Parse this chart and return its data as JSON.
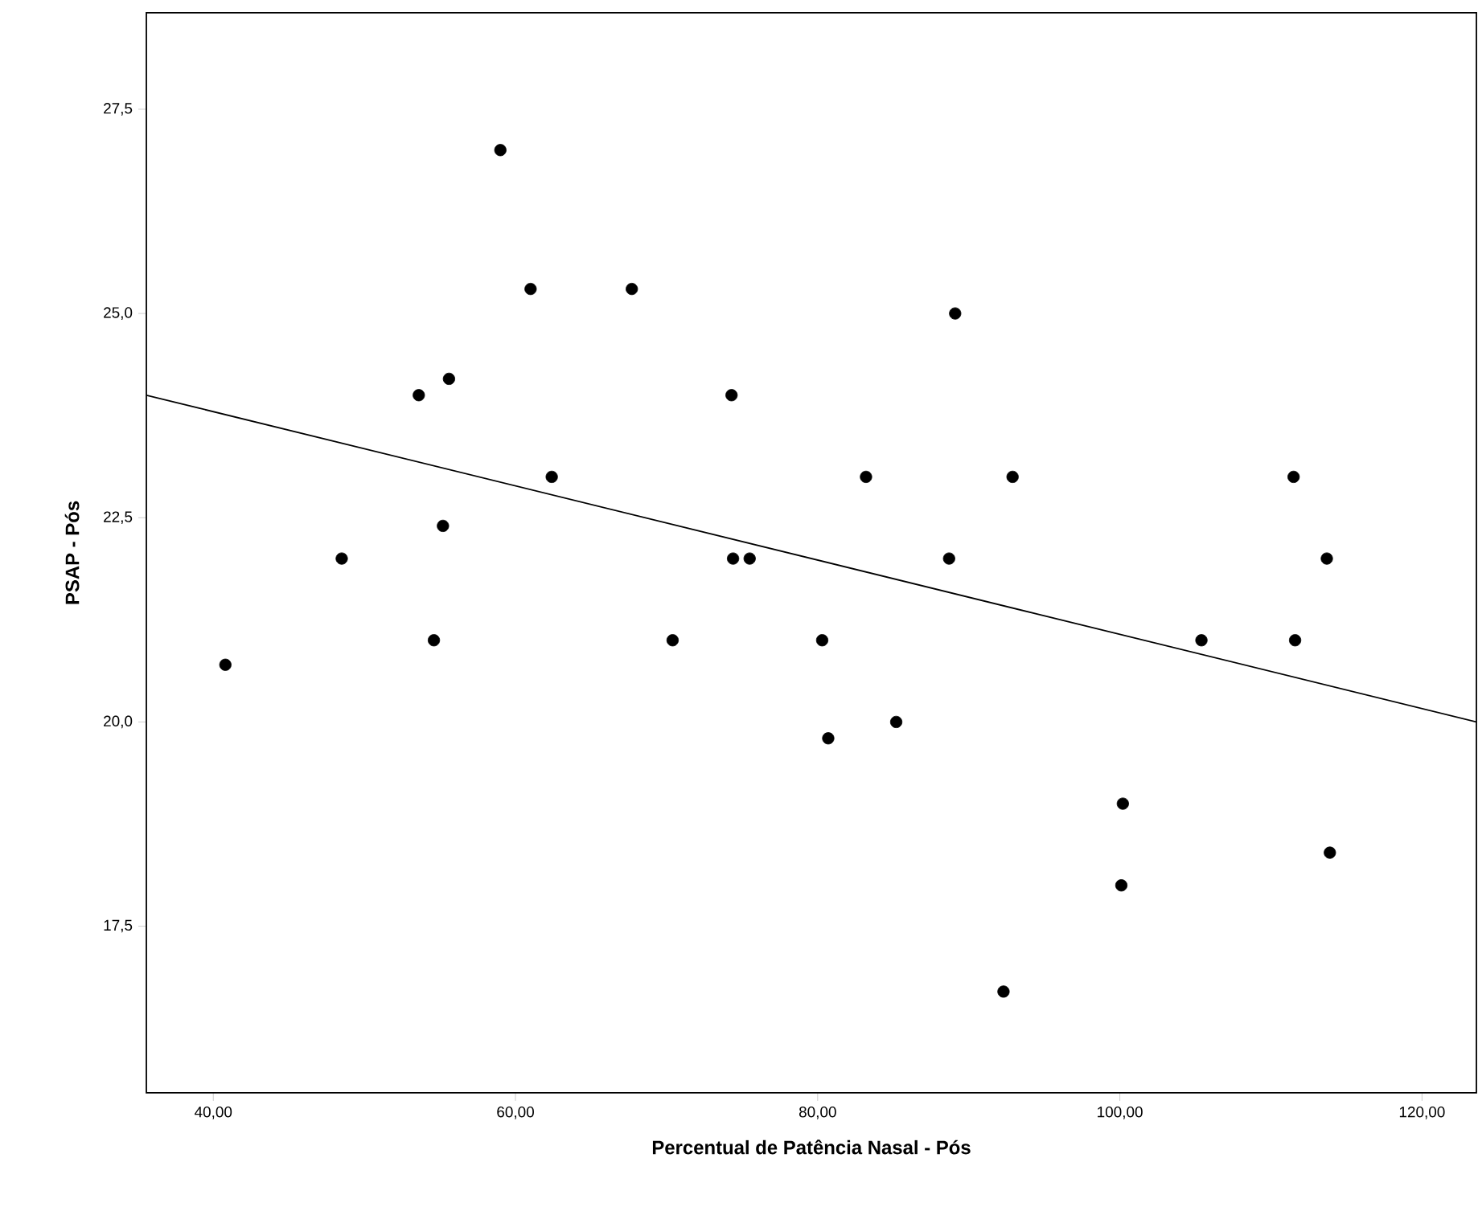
{
  "chart_data": {
    "type": "scatter",
    "xlabel": "Percentual de Patência Nasal - Pós",
    "ylabel": "PSAP - Pós",
    "xlim": [
      35.57,
      123.6
    ],
    "ylim": [
      15.46,
      28.68
    ],
    "xticks": [
      {
        "value": 40,
        "label": "40,00"
      },
      {
        "value": 60,
        "label": "60,00"
      },
      {
        "value": 80,
        "label": "80,00"
      },
      {
        "value": 100,
        "label": "100,00"
      },
      {
        "value": 120,
        "label": "120,00"
      }
    ],
    "yticks": [
      {
        "value": 17.5,
        "label": "17,5"
      },
      {
        "value": 20,
        "label": "20,0"
      },
      {
        "value": 22.5,
        "label": "22,5"
      },
      {
        "value": 25,
        "label": "25,0"
      },
      {
        "value": 27.5,
        "label": "27,5"
      }
    ],
    "grid": false,
    "series": [
      {
        "color": "#000000",
        "marker": "circle",
        "x": [
          40.8,
          48.5,
          53.6,
          55.6,
          55.2,
          54.6,
          59.0,
          61.0,
          62.4,
          67.7,
          70.4,
          74.3,
          74.4,
          75.5,
          89.1,
          83.2,
          92.9,
          111.5,
          88.7,
          113.7,
          80.3,
          105.4,
          111.6,
          85.2,
          80.7,
          100.2,
          113.9,
          100.1,
          92.3
        ],
        "values": [
          20.7,
          22.0,
          24.0,
          24.2,
          22.4,
          21.0,
          27.0,
          25.3,
          23.0,
          25.3,
          21.0,
          24.0,
          22.0,
          22.0,
          25.0,
          23.0,
          23.0,
          23.0,
          22.0,
          22.0,
          21.0,
          21.0,
          21.0,
          20.0,
          19.8,
          19.0,
          18.4,
          18.0,
          16.7
        ]
      },
      {
        "type": "line",
        "color": "#000000",
        "marker": "none",
        "line_style": "solid",
        "x": [
          35.57,
          123.6
        ],
        "values": [
          24.0,
          20.0
        ]
      }
    ]
  }
}
